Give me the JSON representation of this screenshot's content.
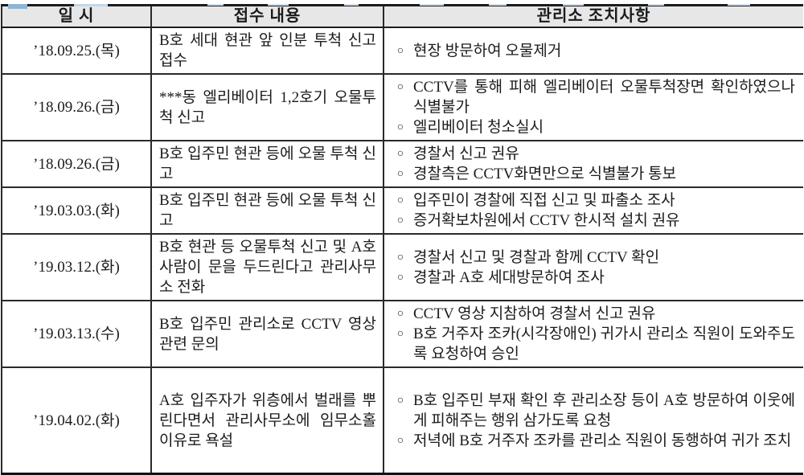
{
  "table": {
    "bullet_glyph": "○",
    "columns": [
      "일 시",
      "접수 내용",
      "관리소 조치사항"
    ],
    "rows": [
      {
        "date": "’18.09.25.(목)",
        "received": "B호 세대 현관 앞 인분 투척 신고 접수",
        "actions": [
          "현장 방문하여 오물제거"
        ]
      },
      {
        "date": "’18.09.26.(금)",
        "received": "***동 엘리베이터 1,2호기 오물투척 신고",
        "actions": [
          "CCTV를 통해 피해 엘리베이터 오물투척장면 확인하였으나 식별불가",
          "엘리베이터 청소실시"
        ]
      },
      {
        "date": "’18.09.26.(금)",
        "received": "B호 입주민 현관 등에 오물 투척 신고",
        "actions": [
          "경찰서 신고 권유",
          "경찰측은 CCTV화면만으로 식별불가 통보"
        ]
      },
      {
        "date": "’19.03.03.(화)",
        "received": "B호 입주민 현관 등에 오물 투척 신고",
        "actions": [
          "입주민이 경찰에 직접 신고 및 파출소 조사",
          "증거확보차원에서 CCTV 한시적 설치 권유"
        ]
      },
      {
        "date": "’19.03.12.(화)",
        "received": "B호 현관 등 오물투척 신고 및 A호 사람이 문을 두드린다고 관리사무소 전화",
        "actions": [
          "경찰서 신고 및 경찰과 함께 CCTV 확인",
          "경찰과 A호 세대방문하여 조사"
        ]
      },
      {
        "date": "’19.03.13.(수)",
        "received": "B호 입주민 관리소로 CCTV 영상관련 문의",
        "actions": [
          "CCTV 영상 지참하여 경찰서 신고 권유",
          "B호 거주자 조카(시각장애인) 귀가시 관리소 직원이 도와주도록 요청하여 승인"
        ]
      },
      {
        "date": "’19.04.02.(화)",
        "received": "A호 입주자가 위층에서 벌래를 뿌린다면서 관리사무소에 임무소홀 이유로 욕설",
        "actions": [
          "B호 입주민 부재 확인 후 관리소장 등이 A호 방문하여 이웃에게 피해주는 행위 삼가도록 요청",
          "저녁에 B호 거주자 조카를 관리소 직원이 동행하여 귀가 조치"
        ]
      }
    ]
  }
}
